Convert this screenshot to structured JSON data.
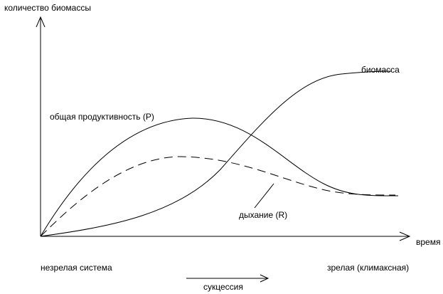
{
  "labels": {
    "y_axis": "количество биомассы",
    "x_axis": "время",
    "biomass": "биомасса",
    "gross_productivity": "общая продуктивность (P)",
    "respiration": "дыхание (R)",
    "immature_system": "незрелая система",
    "mature_system": "зрелая (климаксная)",
    "succession": "сукцессия"
  },
  "curves": [
    {
      "id": "biomass",
      "style": "solid",
      "label_ref": "biomass"
    },
    {
      "id": "gross-productivity",
      "style": "solid",
      "label_ref": "gross_productivity"
    },
    {
      "id": "respiration",
      "style": "dashed",
      "label_ref": "respiration"
    }
  ]
}
